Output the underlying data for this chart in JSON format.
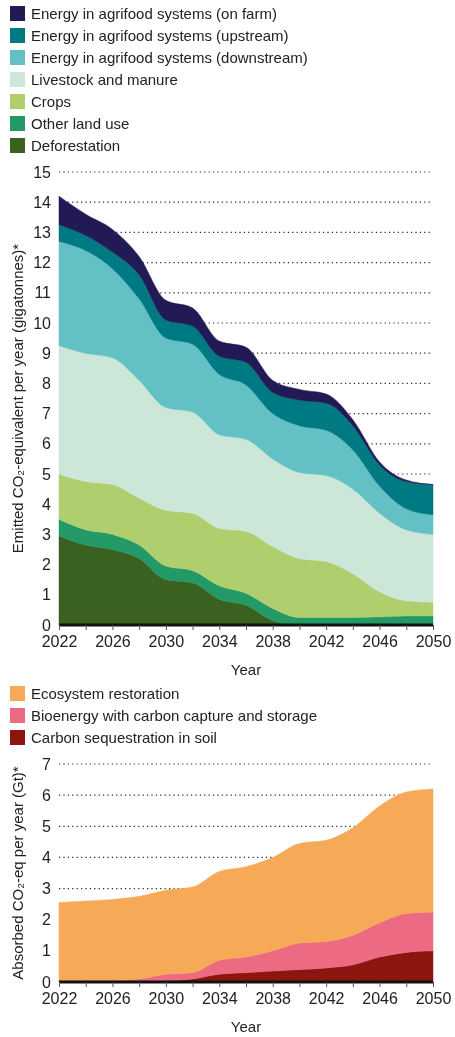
{
  "chart_data": [
    {
      "type": "area",
      "stacked": true,
      "xlabel": "Year",
      "ylabel": "Emitted CO₂-equivalent per year (gigatonnes)*",
      "x": [
        2022,
        2024,
        2026,
        2028,
        2030,
        2032,
        2034,
        2036,
        2038,
        2040,
        2042,
        2044,
        2046,
        2048,
        2050
      ],
      "xlim": [
        2022,
        2050
      ],
      "xticks": [
        2022,
        {
          "value": 2024,
          "label": null
        },
        2026,
        {
          "value": 2028,
          "label": null
        },
        2030,
        {
          "value": 2032,
          "label": null
        },
        2034,
        {
          "value": 2036,
          "label": null
        },
        2038,
        {
          "value": 2040,
          "label": null
        },
        2042,
        {
          "value": 2044,
          "label": null
        },
        2046,
        {
          "value": 2048,
          "label": null
        },
        2050
      ],
      "ylim": [
        0,
        15
      ],
      "yticks": [
        0,
        1,
        2,
        3,
        4,
        5,
        6,
        7,
        8,
        9,
        10,
        11,
        12,
        13,
        14,
        15
      ],
      "grid": "y",
      "legend": "top",
      "series": [
        {
          "name": "Deforestation",
          "color": "#3a6120",
          "values": [
            2.95,
            2.65,
            2.5,
            2.2,
            1.5,
            1.4,
            0.85,
            0.65,
            0.15,
            0,
            0,
            0,
            0,
            0,
            0
          ]
        },
        {
          "name": "Other land use",
          "color": "#229966",
          "values": [
            0.55,
            0.5,
            0.5,
            0.45,
            0.45,
            0.4,
            0.45,
            0.4,
            0.4,
            0.25,
            0.25,
            0.25,
            0.27,
            0.3,
            0.3
          ]
        },
        {
          "name": "Crops",
          "color": "#afcf6e",
          "values": [
            1.5,
            1.6,
            1.65,
            1.55,
            1.85,
            1.9,
            1.9,
            2.05,
            2.05,
            1.95,
            1.85,
            1.45,
            0.83,
            0.5,
            0.45
          ]
        },
        {
          "name": "Livestock and manure",
          "color": "#cce6d8",
          "values": [
            4.25,
            4.25,
            4.2,
            3.9,
            3.4,
            3.35,
            3.1,
            3.05,
            2.9,
            2.85,
            2.85,
            2.8,
            2.6,
            2.35,
            2.25
          ]
        },
        {
          "name": "Energy in agrifood systems (downstream)",
          "color": "#63c1c6",
          "values": [
            3.45,
            3.4,
            2.95,
            2.7,
            2.3,
            2.25,
            2.0,
            1.8,
            1.5,
            1.55,
            1.5,
            1.3,
            0.9,
            0.7,
            0.65
          ]
        },
        {
          "name": "Energy in agrifood systems (upstream)",
          "color": "#007a82",
          "values": [
            0.55,
            0.5,
            0.55,
            0.8,
            0.6,
            0.6,
            0.6,
            0.75,
            0.7,
            0.85,
            0.9,
            0.8,
            0.7,
            0.9,
            1.0
          ]
        },
        {
          "name": "Energy in agrifood systems (on farm)",
          "color": "#221a55",
          "values": [
            0.95,
            0.7,
            0.75,
            0.6,
            0.65,
            0.6,
            0.5,
            0.5,
            0.4,
            0.35,
            0.3,
            0.2,
            0.1,
            0.05,
            0
          ]
        }
      ]
    },
    {
      "type": "area",
      "stacked": true,
      "xlabel": "Year",
      "ylabel": "Absorbed CO₂-eq per year (Gt)*",
      "x": [
        2022,
        2024,
        2026,
        2028,
        2030,
        2032,
        2034,
        2036,
        2038,
        2040,
        2042,
        2044,
        2046,
        2048,
        2050
      ],
      "xlim": [
        2022,
        2050
      ],
      "xticks": [
        2022,
        {
          "value": 2024,
          "label": null
        },
        2026,
        {
          "value": 2028,
          "label": null
        },
        2030,
        {
          "value": 2032,
          "label": null
        },
        2034,
        {
          "value": 2036,
          "label": null
        },
        2038,
        {
          "value": 2040,
          "label": null
        },
        2042,
        {
          "value": 2044,
          "label": null
        },
        2046,
        {
          "value": 2048,
          "label": null
        },
        2050
      ],
      "ylim": [
        0,
        7
      ],
      "yticks": [
        0,
        1,
        2,
        3,
        4,
        5,
        6,
        7
      ],
      "grid": "y",
      "legend": "top",
      "series": [
        {
          "name": "Carbon sequestration in soil",
          "color": "#8c1510",
          "values": [
            0.05,
            0.05,
            0.05,
            0.05,
            0.05,
            0.1,
            0.25,
            0.3,
            0.35,
            0.4,
            0.45,
            0.55,
            0.8,
            0.95,
            1.0
          ]
        },
        {
          "name": "Bioenergy with carbon capture and storage",
          "color": "#ec6b82",
          "values": [
            0,
            0,
            0,
            0.05,
            0.2,
            0.2,
            0.45,
            0.5,
            0.65,
            0.85,
            0.85,
            0.95,
            1.1,
            1.25,
            1.25
          ]
        },
        {
          "name": "Ecosystem restoration",
          "color": "#f6aa58",
          "values": [
            2.5,
            2.55,
            2.6,
            2.65,
            2.7,
            2.75,
            2.85,
            2.9,
            3.0,
            3.2,
            3.25,
            3.45,
            3.75,
            3.9,
            3.95
          ]
        }
      ]
    }
  ]
}
